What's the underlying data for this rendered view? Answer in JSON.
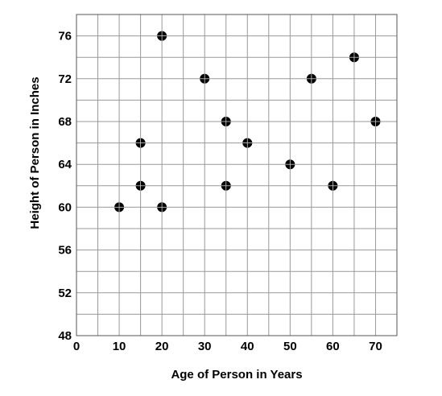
{
  "chart_data": {
    "type": "scatter",
    "xlabel": "Age of Person in Years",
    "ylabel": "Height of Person in Inches",
    "xlim": [
      0,
      75
    ],
    "ylim": [
      48,
      78
    ],
    "x_minor_step": 5,
    "y_minor_step": 2,
    "x_ticks": [
      "0",
      "10",
      "20",
      "30",
      "40",
      "50",
      "60",
      "70"
    ],
    "x_tick_values": [
      0,
      10,
      20,
      30,
      40,
      50,
      60,
      70
    ],
    "y_ticks": [
      "48",
      "52",
      "56",
      "60",
      "64",
      "68",
      "72",
      "76"
    ],
    "y_tick_values": [
      48,
      52,
      56,
      60,
      64,
      68,
      72,
      76
    ],
    "grid": true,
    "legend": "none",
    "marker_color": "#000000",
    "grid_color": "#999999",
    "points": [
      {
        "x": 10,
        "y": 60
      },
      {
        "x": 15,
        "y": 66
      },
      {
        "x": 15,
        "y": 62
      },
      {
        "x": 20,
        "y": 76
      },
      {
        "x": 20,
        "y": 60
      },
      {
        "x": 30,
        "y": 72
      },
      {
        "x": 35,
        "y": 68
      },
      {
        "x": 35,
        "y": 62
      },
      {
        "x": 40,
        "y": 66
      },
      {
        "x": 50,
        "y": 64
      },
      {
        "x": 55,
        "y": 72
      },
      {
        "x": 60,
        "y": 62
      },
      {
        "x": 65,
        "y": 74
      },
      {
        "x": 70,
        "y": 68
      }
    ]
  }
}
